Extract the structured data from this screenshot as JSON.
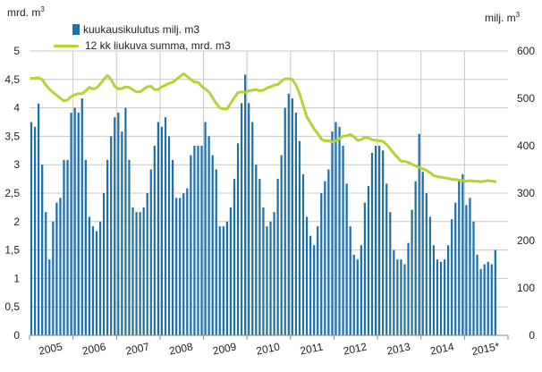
{
  "chart_data": {
    "type": "bar+line",
    "left_axis_label": "mrd. m",
    "right_axis_label": "milj. m",
    "unit_superscript": "3",
    "legend": [
      {
        "label": "kuukausikulutus milj. m3",
        "kind": "bar"
      },
      {
        "label": "12 kk liukuva summa, mrd. m3",
        "kind": "line"
      }
    ],
    "left_axis": {
      "min": 0,
      "max": 5,
      "ticks": [
        0,
        0.5,
        1,
        1.5,
        2,
        2.5,
        3,
        3.5,
        4,
        4.5,
        5
      ],
      "tick_labels": [
        "0",
        "0,5",
        "1",
        "1,5",
        "2",
        "2,5",
        "3",
        "3,5",
        "4",
        "4,5",
        "5"
      ]
    },
    "right_axis": {
      "min": 0,
      "max": 600,
      "ticks": [
        0,
        100,
        200,
        300,
        400,
        500,
        600
      ],
      "tick_labels": [
        "0",
        "100",
        "200",
        "300",
        "400",
        "500",
        "600"
      ]
    },
    "x_labels": [
      "2005",
      "2006",
      "2007",
      "2008",
      "2009",
      "2010",
      "2011",
      "2012",
      "2013",
      "2014",
      "2015*"
    ],
    "start_year": 2005,
    "grid": true,
    "series": [
      {
        "name": "kuukausikulutus milj. m3",
        "axis": "right",
        "color": "#1f6fa8",
        "values": [
          450,
          440,
          489,
          360,
          260,
          160,
          240,
          280,
          290,
          370,
          370,
          470,
          480,
          470,
          500,
          370,
          250,
          230,
          220,
          240,
          300,
          370,
          420,
          460,
          470,
          430,
          480,
          370,
          270,
          260,
          260,
          270,
          300,
          350,
          400,
          450,
          440,
          460,
          420,
          370,
          290,
          290,
          300,
          310,
          380,
          400,
          400,
          400,
          450,
          420,
          380,
          350,
          230,
          230,
          240,
          270,
          330,
          405,
          490,
          550,
          490,
          450,
          360,
          330,
          270,
          230,
          240,
          260,
          330,
          380,
          480,
          510,
          500,
          470,
          410,
          340,
          250,
          210,
          190,
          230,
          300,
          325,
          350,
          430,
          450,
          440,
          400,
          320,
          230,
          170,
          160,
          190,
          280,
          315,
          385,
          400,
          400,
          390,
          320,
          260,
          180,
          160,
          160,
          150,
          195,
          265,
          325,
          425,
          345,
          300,
          250,
          190,
          160,
          155,
          160,
          190,
          245,
          280,
          330,
          340,
          275,
          290,
          240,
          170,
          140,
          150,
          155,
          150,
          180
        ]
      },
      {
        "name": "12 kk liukuva summa, mrd. m3",
        "axis": "left",
        "color": "#b5d334",
        "values": [
          4.52,
          4.52,
          4.53,
          4.5,
          4.4,
          4.33,
          4.27,
          4.22,
          4.17,
          4.12,
          4.14,
          4.2,
          4.23,
          4.25,
          4.25,
          4.3,
          4.36,
          4.33,
          4.35,
          4.42,
          4.5,
          4.57,
          4.5,
          4.38,
          4.33,
          4.34,
          4.37,
          4.36,
          4.32,
          4.28,
          4.28,
          4.33,
          4.37,
          4.38,
          4.32,
          4.32,
          4.37,
          4.4,
          4.43,
          4.45,
          4.5,
          4.55,
          4.6,
          4.55,
          4.5,
          4.45,
          4.45,
          4.38,
          4.33,
          4.28,
          4.18,
          4.08,
          4.0,
          3.98,
          3.98,
          4.08,
          4.18,
          4.27,
          4.28,
          4.27,
          4.3,
          4.31,
          4.32,
          4.3,
          4.31,
          4.35,
          4.37,
          4.4,
          4.41,
          4.47,
          4.51,
          4.51,
          4.5,
          4.4,
          4.25,
          4.04,
          3.84,
          3.74,
          3.63,
          3.55,
          3.45,
          3.42,
          3.42,
          3.4,
          3.42,
          3.46,
          3.5,
          3.51,
          3.53,
          3.49,
          3.43,
          3.44,
          3.48,
          3.47,
          3.44,
          3.43,
          3.42,
          3.41,
          3.36,
          3.28,
          3.2,
          3.13,
          3.06,
          3.06,
          3.04,
          3.01,
          2.98,
          2.95,
          2.93,
          2.9,
          2.86,
          2.81,
          2.79,
          2.78,
          2.77,
          2.76,
          2.74,
          2.74,
          2.73,
          2.72,
          2.71,
          2.72,
          2.71,
          2.71,
          2.7,
          2.71,
          2.72,
          2.71,
          2.7
        ]
      }
    ]
  }
}
